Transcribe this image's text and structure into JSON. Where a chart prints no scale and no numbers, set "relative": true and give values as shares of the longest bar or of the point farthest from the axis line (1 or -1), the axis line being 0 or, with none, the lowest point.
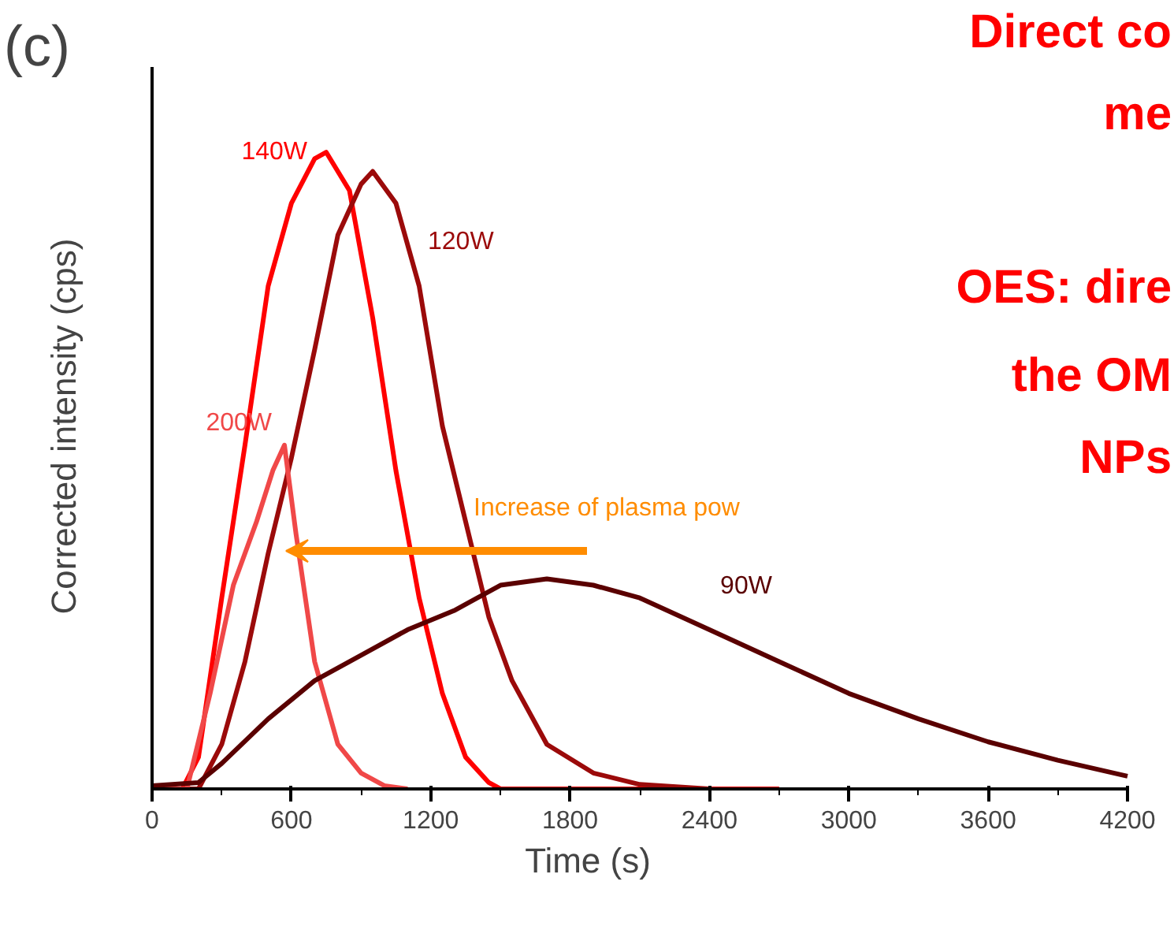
{
  "chart_data": {
    "type": "line",
    "title": "(c)",
    "xlabel": "Time (s)",
    "ylabel": "Corrected intensity (cps)",
    "relative": true,
    "xlim": [
      0,
      4200
    ],
    "xticks": [
      0,
      600,
      1200,
      1800,
      2400,
      3000,
      3600,
      4200
    ],
    "grid": false,
    "legend": false,
    "marker": "none",
    "line_style": "solid",
    "annotations": [
      "Increase of plasma pow",
      "Direct co",
      "me",
      "OES: dire",
      "the OM",
      "NPs"
    ],
    "series": [
      {
        "name": "140W",
        "color": "#ff0000",
        "x": [
          0,
          130,
          200,
          300,
          400,
          500,
          600,
          700,
          750,
          850,
          950,
          1050,
          1150,
          1250,
          1350,
          1450,
          1500,
          2700
        ],
        "values": [
          0,
          0,
          0.05,
          0.3,
          0.54,
          0.79,
          0.92,
          0.99,
          1.0,
          0.94,
          0.74,
          0.5,
          0.3,
          0.15,
          0.05,
          0.01,
          0,
          0
        ]
      },
      {
        "name": "120W",
        "color": "#9b0a0a",
        "x": [
          0,
          200,
          300,
          400,
          500,
          600,
          700,
          800,
          900,
          950,
          1050,
          1150,
          1250,
          1350,
          1450,
          1550,
          1700,
          1900,
          2100,
          2400
        ],
        "values": [
          0,
          0,
          0.07,
          0.2,
          0.37,
          0.52,
          0.69,
          0.87,
          0.95,
          0.97,
          0.92,
          0.79,
          0.57,
          0.42,
          0.27,
          0.17,
          0.07,
          0.025,
          0.007,
          0
        ]
      },
      {
        "name": "200W",
        "color": "#f04848",
        "x": [
          0,
          150,
          250,
          350,
          450,
          520,
          570,
          620,
          700,
          800,
          900,
          1000,
          1100
        ],
        "values": [
          0,
          0,
          0.15,
          0.32,
          0.42,
          0.5,
          0.54,
          0.4,
          0.2,
          0.07,
          0.025,
          0.005,
          0
        ]
      },
      {
        "name": "90W",
        "color": "#5a0000",
        "x": [
          0,
          200,
          300,
          500,
          700,
          900,
          1100,
          1300,
          1500,
          1700,
          1900,
          2100,
          2400,
          2700,
          3000,
          3300,
          3600,
          3900,
          4200
        ],
        "values": [
          0.005,
          0.01,
          0.04,
          0.11,
          0.17,
          0.21,
          0.25,
          0.28,
          0.32,
          0.33,
          0.32,
          0.3,
          0.25,
          0.2,
          0.15,
          0.11,
          0.074,
          0.045,
          0.02
        ]
      }
    ]
  }
}
